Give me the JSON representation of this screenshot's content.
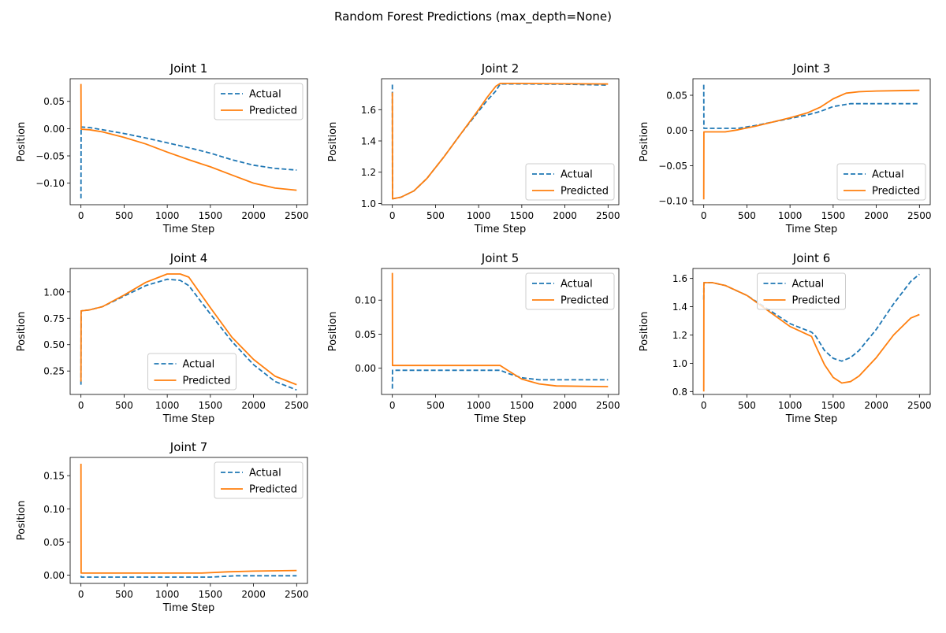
{
  "figure": {
    "suptitle": "Random Forest Predictions (max_depth=None)",
    "colors": {
      "actual": "#1f77b4",
      "predicted": "#ff7f0e"
    }
  },
  "chart_data": [
    {
      "type": "line",
      "title": "Joint 1",
      "xlabel": "Time Step",
      "ylabel": "Position",
      "xlim": [
        -125,
        2625
      ],
      "ylim": [
        -0.1395,
        0.0915
      ],
      "xticks": [
        0,
        500,
        1000,
        1500,
        2000,
        2500
      ],
      "yticks": [
        -0.1,
        -0.05,
        0.0,
        0.05
      ],
      "ytick_labels": [
        "−0.10",
        "−0.05",
        "0.00",
        "0.05"
      ],
      "legend": "upper right",
      "series": [
        {
          "name": "Actual",
          "style": "dashed",
          "points": [
            [
              0,
              -0.128
            ],
            [
              2,
              0.003
            ],
            [
              100,
              0.002
            ],
            [
              250,
              -0.002
            ],
            [
              500,
              -0.009
            ],
            [
              750,
              -0.017
            ],
            [
              1000,
              -0.026
            ],
            [
              1250,
              -0.035
            ],
            [
              1500,
              -0.045
            ],
            [
              1750,
              -0.057
            ],
            [
              2000,
              -0.067
            ],
            [
              2250,
              -0.073
            ],
            [
              2500,
              -0.076
            ]
          ]
        },
        {
          "name": "Predicted",
          "style": "solid",
          "points": [
            [
              0,
              0.082
            ],
            [
              2,
              -0.001
            ],
            [
              100,
              -0.002
            ],
            [
              250,
              -0.006
            ],
            [
              500,
              -0.016
            ],
            [
              750,
              -0.028
            ],
            [
              1000,
              -0.043
            ],
            [
              1250,
              -0.057
            ],
            [
              1500,
              -0.07
            ],
            [
              1750,
              -0.085
            ],
            [
              2000,
              -0.1
            ],
            [
              2250,
              -0.109
            ],
            [
              2500,
              -0.113
            ]
          ]
        }
      ]
    },
    {
      "type": "line",
      "title": "Joint 2",
      "xlabel": "Time Step",
      "ylabel": "Position",
      "xlim": [
        -125,
        2625
      ],
      "ylim": [
        0.992,
        1.798
      ],
      "xticks": [
        0,
        500,
        1000,
        1500,
        2000,
        2500
      ],
      "yticks": [
        1.0,
        1.2,
        1.4,
        1.6
      ],
      "ytick_labels": [
        "1.0",
        "1.2",
        "1.4",
        "1.6"
      ],
      "legend": "lower right",
      "series": [
        {
          "name": "Actual",
          "style": "dashed",
          "points": [
            [
              0,
              1.76
            ],
            [
              2,
              1.03
            ],
            [
              100,
              1.04
            ],
            [
              250,
              1.08
            ],
            [
              400,
              1.16
            ],
            [
              600,
              1.3
            ],
            [
              800,
              1.45
            ],
            [
              1000,
              1.59
            ],
            [
              1100,
              1.66
            ],
            [
              1200,
              1.72
            ],
            [
              1250,
              1.765
            ],
            [
              1500,
              1.765
            ],
            [
              2000,
              1.763
            ],
            [
              2500,
              1.757
            ]
          ]
        },
        {
          "name": "Predicted",
          "style": "solid",
          "points": [
            [
              0,
              1.71
            ],
            [
              2,
              1.03
            ],
            [
              100,
              1.04
            ],
            [
              250,
              1.08
            ],
            [
              400,
              1.16
            ],
            [
              600,
              1.3
            ],
            [
              800,
              1.45
            ],
            [
              1000,
              1.6
            ],
            [
              1100,
              1.68
            ],
            [
              1200,
              1.75
            ],
            [
              1250,
              1.768
            ],
            [
              1500,
              1.768
            ],
            [
              2000,
              1.766
            ],
            [
              2500,
              1.764
            ]
          ]
        }
      ]
    },
    {
      "type": "line",
      "title": "Joint 3",
      "xlabel": "Time Step",
      "ylabel": "Position",
      "xlim": [
        -125,
        2625
      ],
      "ylim": [
        -0.1055,
        0.0735
      ],
      "xticks": [
        0,
        500,
        1000,
        1500,
        2000,
        2500
      ],
      "yticks": [
        -0.1,
        -0.05,
        0.0,
        0.05
      ],
      "ytick_labels": [
        "−0.10",
        "−0.05",
        "0.00",
        "0.05"
      ],
      "legend": "lower right",
      "series": [
        {
          "name": "Actual",
          "style": "dashed",
          "points": [
            [
              0,
              0.065
            ],
            [
              2,
              0.003
            ],
            [
              100,
              0.003
            ],
            [
              400,
              0.003
            ],
            [
              600,
              0.007
            ],
            [
              800,
              0.012
            ],
            [
              1000,
              0.017
            ],
            [
              1200,
              0.022
            ],
            [
              1350,
              0.027
            ],
            [
              1500,
              0.034
            ],
            [
              1700,
              0.038
            ],
            [
              2000,
              0.038
            ],
            [
              2500,
              0.038
            ]
          ]
        },
        {
          "name": "Predicted",
          "style": "solid",
          "points": [
            [
              0,
              -0.098
            ],
            [
              2,
              -0.002
            ],
            [
              100,
              -0.002
            ],
            [
              250,
              -0.002
            ],
            [
              400,
              0.001
            ],
            [
              600,
              0.006
            ],
            [
              800,
              0.012
            ],
            [
              1000,
              0.018
            ],
            [
              1200,
              0.025
            ],
            [
              1350,
              0.033
            ],
            [
              1500,
              0.045
            ],
            [
              1650,
              0.053
            ],
            [
              1800,
              0.055
            ],
            [
              2000,
              0.056
            ],
            [
              2500,
              0.057
            ]
          ]
        }
      ]
    },
    {
      "type": "line",
      "title": "Joint 4",
      "xlabel": "Time Step",
      "ylabel": "Position",
      "xlim": [
        -125,
        2625
      ],
      "ylim": [
        0.0275,
        1.2225
      ],
      "xticks": [
        0,
        500,
        1000,
        1500,
        2000,
        2500
      ],
      "yticks": [
        0.25,
        0.5,
        0.75,
        1.0
      ],
      "ytick_labels": [
        "0.25",
        "0.50",
        "0.75",
        "1.00"
      ],
      "legend": "lower center",
      "series": [
        {
          "name": "Actual",
          "style": "dashed",
          "points": [
            [
              0,
              0.12
            ],
            [
              2,
              0.82
            ],
            [
              100,
              0.83
            ],
            [
              250,
              0.86
            ],
            [
              500,
              0.96
            ],
            [
              750,
              1.06
            ],
            [
              1000,
              1.12
            ],
            [
              1150,
              1.11
            ],
            [
              1250,
              1.06
            ],
            [
              1500,
              0.79
            ],
            [
              1750,
              0.53
            ],
            [
              2000,
              0.31
            ],
            [
              2250,
              0.15
            ],
            [
              2500,
              0.07
            ]
          ]
        },
        {
          "name": "Predicted",
          "style": "solid",
          "points": [
            [
              0,
              0.15
            ],
            [
              2,
              0.82
            ],
            [
              100,
              0.83
            ],
            [
              250,
              0.86
            ],
            [
              500,
              0.97
            ],
            [
              750,
              1.09
            ],
            [
              1000,
              1.17
            ],
            [
              1150,
              1.17
            ],
            [
              1250,
              1.14
            ],
            [
              1500,
              0.85
            ],
            [
              1750,
              0.57
            ],
            [
              2000,
              0.36
            ],
            [
              2250,
              0.2
            ],
            [
              2500,
              0.12
            ]
          ]
        }
      ]
    },
    {
      "type": "line",
      "title": "Joint 5",
      "xlabel": "Time Step",
      "ylabel": "Position",
      "xlim": [
        -125,
        2625
      ],
      "ylim": [
        -0.0385,
        0.1465
      ],
      "xticks": [
        0,
        500,
        1000,
        1500,
        2000,
        2500
      ],
      "yticks": [
        0.0,
        0.05,
        0.1
      ],
      "ytick_labels": [
        "0.00",
        "0.05",
        "0.10"
      ],
      "legend": "upper right",
      "series": [
        {
          "name": "Actual",
          "style": "dashed",
          "points": [
            [
              0,
              -0.03
            ],
            [
              2,
              -0.003
            ],
            [
              1250,
              -0.003
            ],
            [
              1350,
              -0.008
            ],
            [
              1500,
              -0.014
            ],
            [
              1700,
              -0.017
            ],
            [
              2000,
              -0.017
            ],
            [
              2500,
              -0.017
            ]
          ]
        },
        {
          "name": "Predicted",
          "style": "solid",
          "points": [
            [
              0,
              0.14
            ],
            [
              2,
              0.004
            ],
            [
              1250,
              0.004
            ],
            [
              1350,
              -0.004
            ],
            [
              1500,
              -0.016
            ],
            [
              1700,
              -0.023
            ],
            [
              1900,
              -0.026
            ],
            [
              2500,
              -0.027
            ]
          ]
        }
      ]
    },
    {
      "type": "line",
      "title": "Joint 6",
      "xlabel": "Time Step",
      "ylabel": "Position",
      "xlim": [
        -125,
        2625
      ],
      "ylim": [
        0.7795,
        1.6705
      ],
      "xticks": [
        0,
        500,
        1000,
        1500,
        2000,
        2500
      ],
      "yticks": [
        0.8,
        1.0,
        1.2,
        1.4,
        1.6
      ],
      "ytick_labels": [
        "0.8",
        "1.0",
        "1.2",
        "1.4",
        "1.6"
      ],
      "legend": "upper center",
      "series": [
        {
          "name": "Actual",
          "style": "dashed",
          "points": [
            [
              0,
              1.45
            ],
            [
              2,
              1.57
            ],
            [
              100,
              1.57
            ],
            [
              250,
              1.55
            ],
            [
              500,
              1.48
            ],
            [
              750,
              1.38
            ],
            [
              1000,
              1.28
            ],
            [
              1250,
              1.22
            ],
            [
              1300,
              1.19
            ],
            [
              1400,
              1.09
            ],
            [
              1500,
              1.035
            ],
            [
              1600,
              1.015
            ],
            [
              1700,
              1.04
            ],
            [
              1800,
              1.09
            ],
            [
              2000,
              1.24
            ],
            [
              2200,
              1.42
            ],
            [
              2400,
              1.58
            ],
            [
              2500,
              1.63
            ]
          ]
        },
        {
          "name": "Predicted",
          "style": "solid",
          "points": [
            [
              0,
              0.8
            ],
            [
              2,
              1.57
            ],
            [
              100,
              1.57
            ],
            [
              250,
              1.55
            ],
            [
              500,
              1.48
            ],
            [
              750,
              1.37
            ],
            [
              1000,
              1.26
            ],
            [
              1250,
              1.19
            ],
            [
              1300,
              1.12
            ],
            [
              1400,
              0.99
            ],
            [
              1500,
              0.9
            ],
            [
              1600,
              0.86
            ],
            [
              1700,
              0.87
            ],
            [
              1800,
              0.91
            ],
            [
              2000,
              1.04
            ],
            [
              2200,
              1.2
            ],
            [
              2400,
              1.32
            ],
            [
              2500,
              1.345
            ]
          ]
        }
      ]
    },
    {
      "type": "line",
      "title": "Joint 7",
      "xlabel": "Time Step",
      "ylabel": "Position",
      "xlim": [
        -125,
        2625
      ],
      "ylim": [
        -0.0125,
        0.1775
      ],
      "xticks": [
        0,
        500,
        1000,
        1500,
        2000,
        2500
      ],
      "yticks": [
        0.0,
        0.05,
        0.1,
        0.15
      ],
      "ytick_labels": [
        "0.00",
        "0.05",
        "0.10",
        "0.15"
      ],
      "legend": "upper right",
      "series": [
        {
          "name": "Actual",
          "style": "dashed",
          "points": [
            [
              0,
              -0.001
            ],
            [
              2,
              -0.003
            ],
            [
              1500,
              -0.003
            ],
            [
              1800,
              -0.001
            ],
            [
              2500,
              -0.001
            ]
          ]
        },
        {
          "name": "Predicted",
          "style": "solid",
          "points": [
            [
              0,
              0.168
            ],
            [
              2,
              0.003
            ],
            [
              1000,
              0.003
            ],
            [
              1400,
              0.003
            ],
            [
              1700,
              0.005
            ],
            [
              2000,
              0.006
            ],
            [
              2500,
              0.007
            ]
          ]
        }
      ]
    }
  ]
}
